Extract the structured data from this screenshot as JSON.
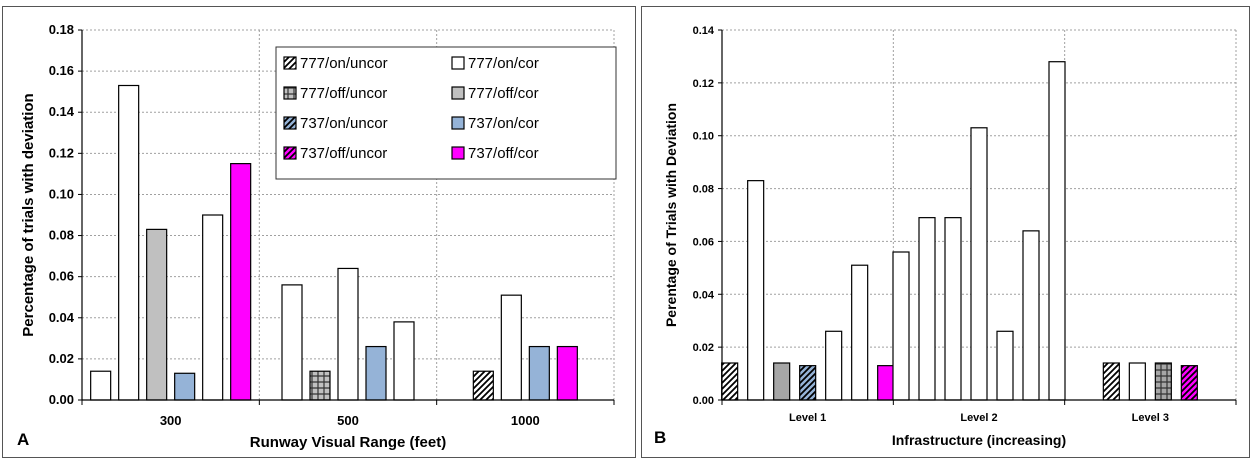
{
  "chart_data": [
    {
      "type": "bar",
      "panel_label": "A",
      "categories": [
        "300",
        "500",
        "1000"
      ],
      "xlabel": "Runway Visual Range (feet)",
      "ylabel": "Percentage of  trials with deviation",
      "ylim": [
        0,
        0.18
      ],
      "yticks": [
        "0.00",
        "0.02",
        "0.04",
        "0.06",
        "0.08",
        "0.10",
        "0.12",
        "0.14",
        "0.16",
        "0.18"
      ],
      "grid": true,
      "legend_position": "top-right",
      "series": [
        {
          "name": "777/on/uncor",
          "pattern": "diagonal",
          "color": "#ffffff",
          "values": [
            0,
            0,
            0.014
          ]
        },
        {
          "name": "777/on/cor",
          "pattern": "solid",
          "color": "#ffffff",
          "values": [
            0.014,
            0.056,
            0
          ]
        },
        {
          "name": "777/off/uncor",
          "pattern": "grid",
          "color": "#c0c0c0",
          "values": [
            0,
            0,
            0
          ]
        },
        {
          "name": "777/off/cor",
          "pattern": "solid",
          "color": "#c0c0c0",
          "values": [
            0,
            0,
            0
          ]
        },
        {
          "name": "737/on/uncor",
          "pattern": "diagonal",
          "color": "#95b3d7",
          "values": [
            0,
            0,
            0
          ]
        },
        {
          "name": "737/on/cor",
          "pattern": "solid",
          "color": "#95b3d7",
          "values": [
            0,
            0,
            0
          ]
        },
        {
          "name": "737/off/uncor",
          "pattern": "diagonal",
          "color": "#ff00ff",
          "values": [
            0,
            0,
            0
          ]
        },
        {
          "name": "737/off/cor",
          "pattern": "solid",
          "color": "#ff00ff",
          "values": [
            0,
            0,
            0
          ]
        }
      ],
      "bars": [
        {
          "category": "300",
          "pattern": "solid",
          "color": "#ffffff",
          "value": 0.014
        },
        {
          "category": "300",
          "pattern": "solid",
          "color": "#ffffff",
          "value": 0.153
        },
        {
          "category": "300",
          "pattern": "solid",
          "color": "#c0c0c0",
          "value": 0.083
        },
        {
          "category": "300",
          "pattern": "solid",
          "color": "#95b3d7",
          "value": 0.013
        },
        {
          "category": "300",
          "pattern": "solid",
          "color": "#ffffff",
          "value": 0.09
        },
        {
          "category": "300",
          "pattern": "solid",
          "color": "#ff00ff",
          "value": 0.115
        },
        {
          "category": "500",
          "pattern": "solid",
          "color": "#ffffff",
          "value": 0.056
        },
        {
          "category": "500",
          "pattern": "grid",
          "color": "#c0c0c0",
          "value": 0.014
        },
        {
          "category": "500",
          "pattern": "solid",
          "color": "#ffffff",
          "value": 0.064
        },
        {
          "category": "500",
          "pattern": "solid",
          "color": "#95b3d7",
          "value": 0.026
        },
        {
          "category": "500",
          "pattern": "solid",
          "color": "#ffffff",
          "value": 0.038
        },
        {
          "category": "1000",
          "pattern": "diagonal",
          "color": "#ffffff",
          "value": 0.014
        },
        {
          "category": "1000",
          "pattern": "solid",
          "color": "#ffffff",
          "value": 0.051
        },
        {
          "category": "1000",
          "pattern": "solid",
          "color": "#95b3d7",
          "value": 0.026
        },
        {
          "category": "1000",
          "pattern": "solid",
          "color": "#ff00ff",
          "value": 0.026
        }
      ]
    },
    {
      "type": "bar",
      "panel_label": "B",
      "categories": [
        "Level 1",
        "Level 2",
        "Level 3"
      ],
      "xlabel": "Infrastructure (increasing)",
      "ylabel": "Perentage of Trials with Deviation",
      "ylim": [
        0,
        0.14
      ],
      "yticks": [
        "0.00",
        "0.02",
        "0.04",
        "0.06",
        "0.08",
        "0.10",
        "0.12",
        "0.14"
      ],
      "grid": true,
      "bars": [
        {
          "category": "Level 1",
          "pattern": "diagonal",
          "color": "#ffffff",
          "value": 0.014
        },
        {
          "category": "Level 1",
          "pattern": "solid",
          "color": "#ffffff",
          "value": 0.083
        },
        {
          "category": "Level 1",
          "pattern": "solid",
          "color": "#a6a6a6",
          "value": 0.014
        },
        {
          "category": "Level 1",
          "pattern": "diagonal",
          "color": "#95b3d7",
          "value": 0.013
        },
        {
          "category": "Level 1",
          "pattern": "solid",
          "color": "#ffffff",
          "value": 0.026
        },
        {
          "category": "Level 1",
          "pattern": "solid",
          "color": "#ffffff",
          "value": 0.051
        },
        {
          "category": "Level 1",
          "pattern": "solid",
          "color": "#ff00ff",
          "value": 0.013
        },
        {
          "category": "Level 2",
          "pattern": "solid",
          "color": "#ffffff",
          "value": 0.056
        },
        {
          "category": "Level 2",
          "pattern": "solid",
          "color": "#ffffff",
          "value": 0.069
        },
        {
          "category": "Level 2",
          "pattern": "solid",
          "color": "#ffffff",
          "value": 0.069
        },
        {
          "category": "Level 2",
          "pattern": "solid",
          "color": "#ffffff",
          "value": 0.103
        },
        {
          "category": "Level 2",
          "pattern": "solid",
          "color": "#ffffff",
          "value": 0.026
        },
        {
          "category": "Level 2",
          "pattern": "solid",
          "color": "#ffffff",
          "value": 0.064
        },
        {
          "category": "Level 2",
          "pattern": "solid",
          "color": "#ffffff",
          "value": 0.128
        },
        {
          "category": "Level 3",
          "pattern": "diagonal",
          "color": "#ffffff",
          "value": 0.014
        },
        {
          "category": "Level 3",
          "pattern": "solid",
          "color": "#ffffff",
          "value": 0.014
        },
        {
          "category": "Level 3",
          "pattern": "grid",
          "color": "#a6a6a6",
          "value": 0.014
        },
        {
          "category": "Level 3",
          "pattern": "diagonal",
          "color": "#ff00ff",
          "value": 0.013
        }
      ]
    }
  ]
}
